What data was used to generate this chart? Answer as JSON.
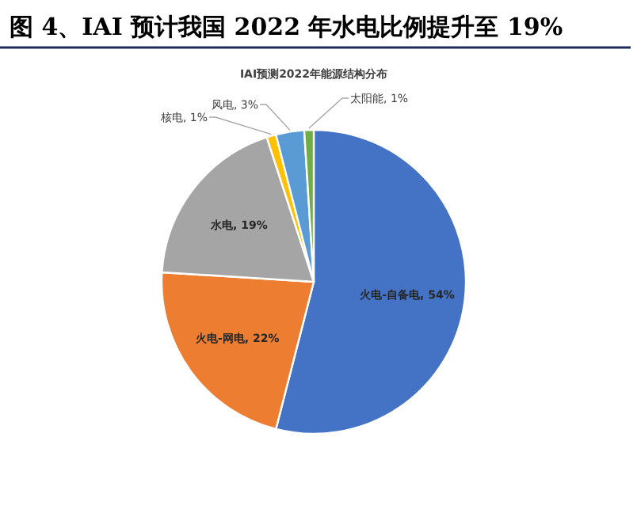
{
  "chart_data": {
    "type": "pie",
    "title": "图 4、IAI 预计我国 2022 年水电比例提升至 19%",
    "subtitle": "IAI预测2022年能源结构分布",
    "categories": [
      "火电-自备电",
      "火电-网电",
      "水电",
      "核电",
      "风电",
      "太阳能"
    ],
    "values": [
      54,
      22,
      19,
      1,
      3,
      1
    ],
    "colors": [
      "#4472c4",
      "#ed7d31",
      "#a5a5a5",
      "#ffc000",
      "#5b9bd5",
      "#70ad47"
    ],
    "value_labels": [
      "54%",
      "22%",
      "19%",
      "1%",
      "3%",
      "1%"
    ],
    "legend": false
  }
}
